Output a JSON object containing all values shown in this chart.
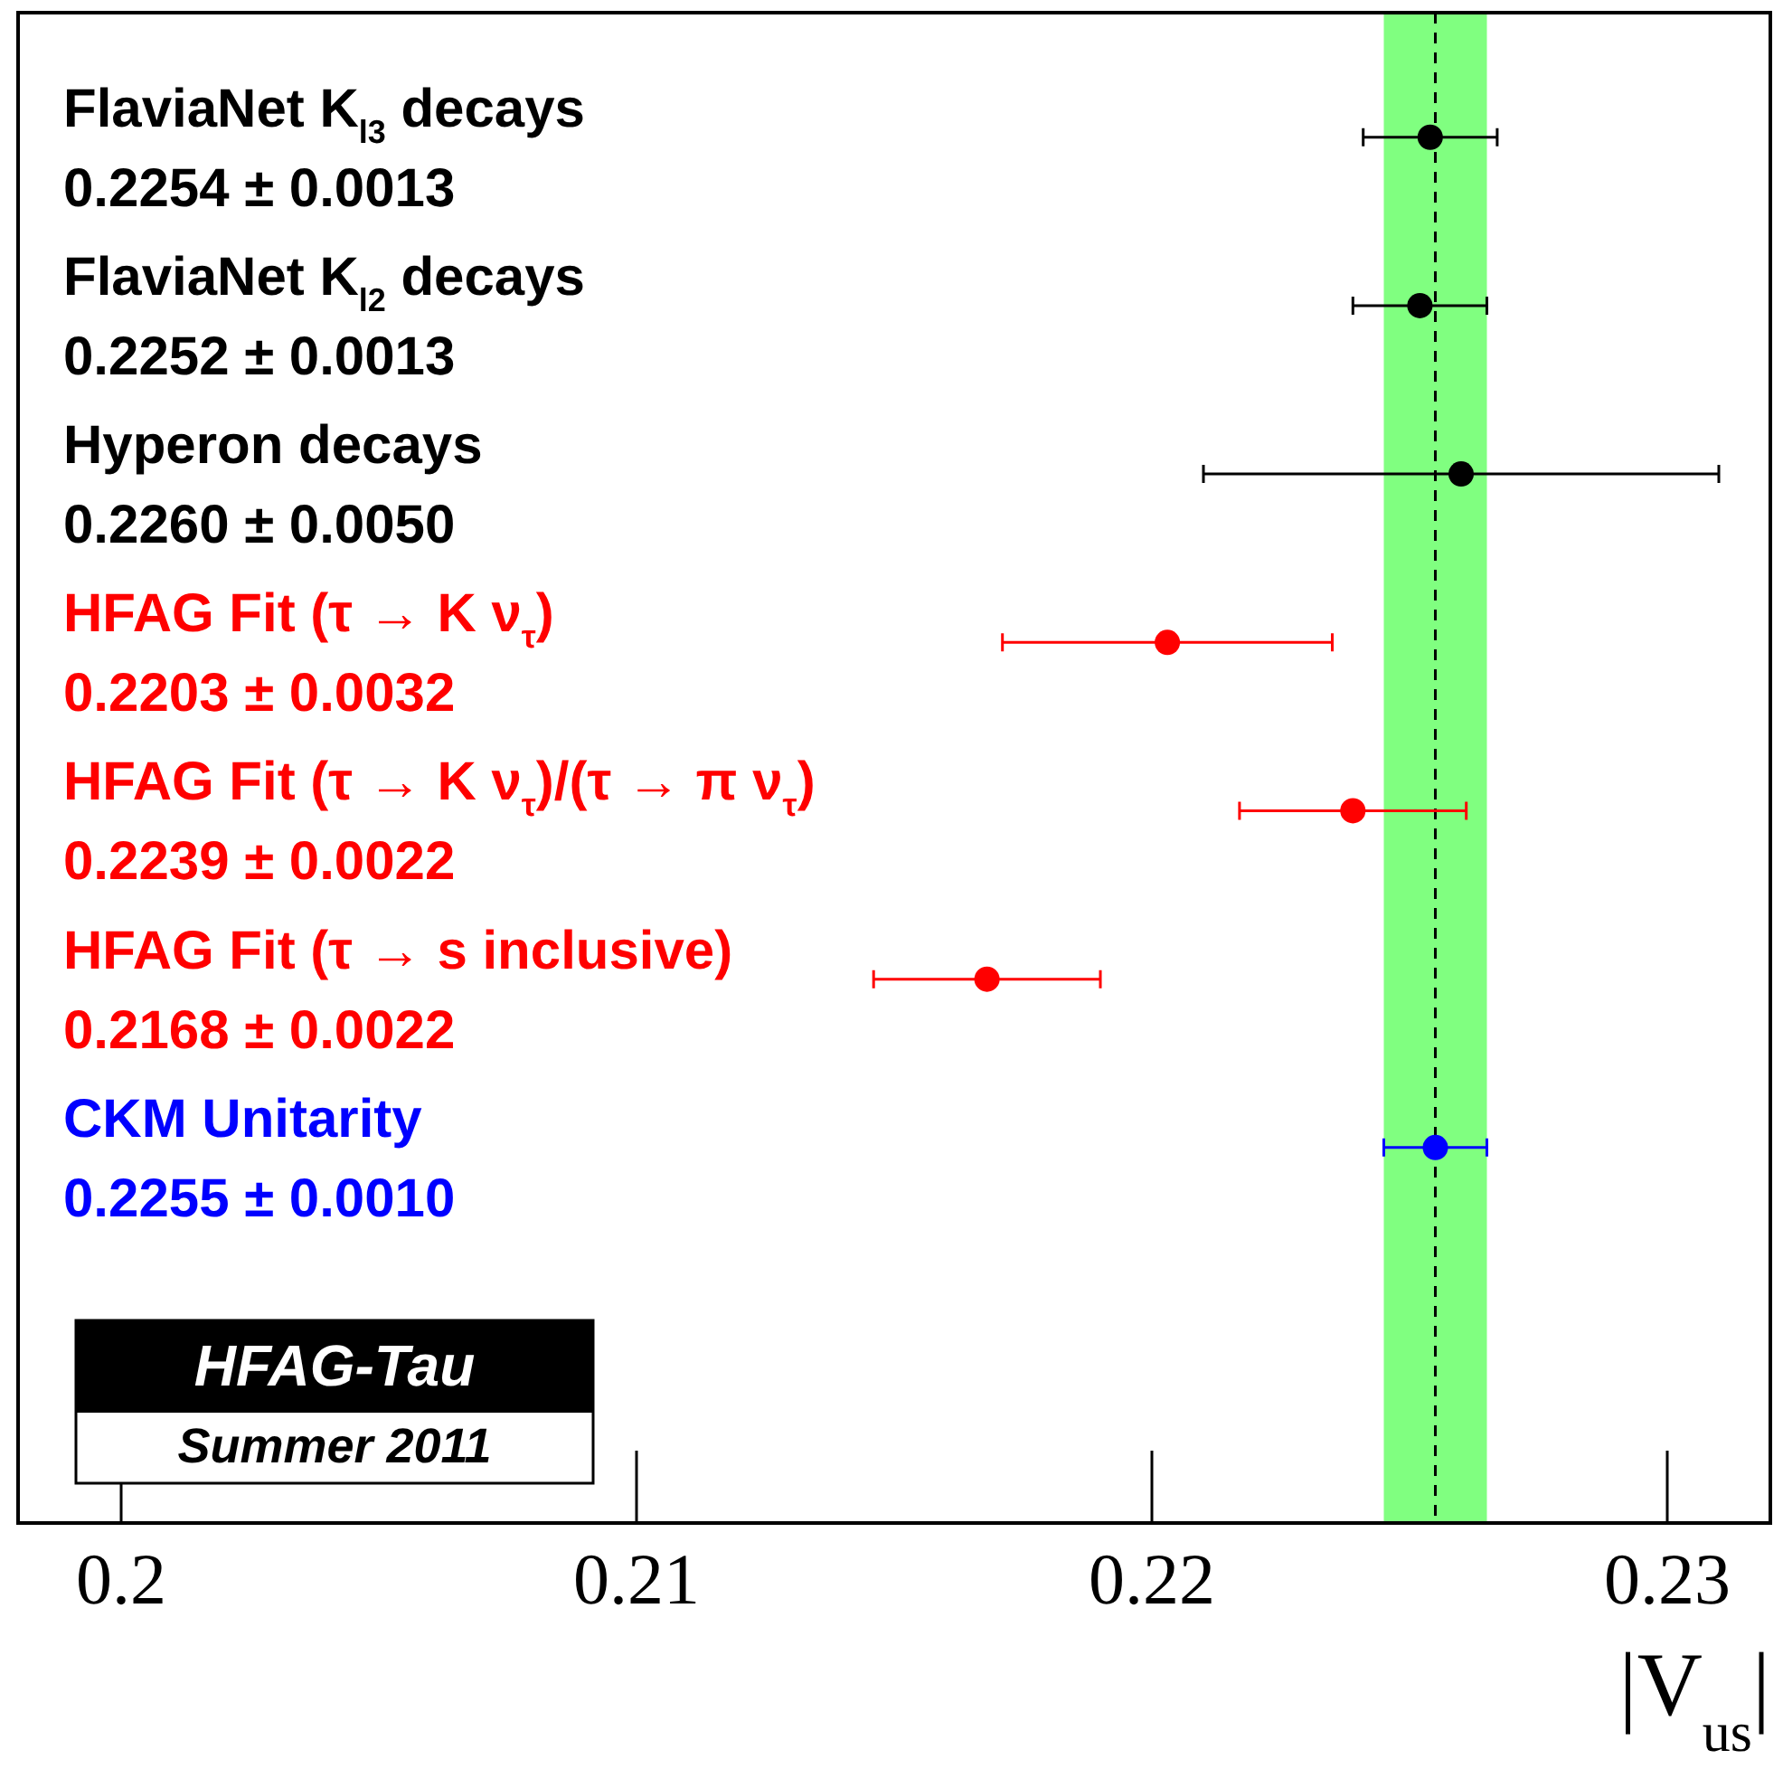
{
  "chart_data": {
    "type": "scatter",
    "orientation": "horizontal",
    "xlabel": "|V$_{us}$|",
    "categories": [
      "FlaviaNet K$_{l3}$ decays\n0.2254 ± 0.0013",
      "FlaviaNet K$_{l2}$ decays\n0.2252 ± 0.0013",
      "Hyperon decays\n0.2260 ± 0.0050",
      "HFAG Fit (τ → K ν$_{τ}$)\n0.2203 ± 0.0032",
      "HFAG Fit (τ → K ν$_{τ}$)/(τ → π ν$_{τ}$)\n0.2239 ± 0.0022",
      "HFAG Fit (τ → s inclusive)\n0.2168 ± 0.0022",
      "CKM Unitarity\n0.2255 ± 0.0010"
    ],
    "series": [
      {
        "color": "#000000",
        "values": [
          0.2254,
          0.2252,
          0.226,
          null,
          null,
          null,
          null
        ],
        "errors": [
          0.0013,
          0.0013,
          0.005,
          null,
          null,
          null,
          null
        ]
      },
      {
        "color": "#ff0000",
        "values": [
          null,
          null,
          null,
          0.2203,
          0.2239,
          0.2168,
          null
        ],
        "errors": [
          null,
          null,
          null,
          0.0032,
          0.0022,
          0.0022,
          null
        ]
      },
      {
        "color": "#0000ff",
        "values": [
          null,
          null,
          null,
          null,
          null,
          null,
          0.2255
        ],
        "errors": [
          null,
          null,
          null,
          null,
          null,
          null,
          0.001
        ]
      }
    ],
    "xlim": [
      0.198,
      0.232
    ],
    "xticks": [
      0.2,
      0.21,
      0.22,
      0.23
    ],
    "bands": [
      {
        "axis": "x",
        "from": 0.2245,
        "to": 0.2265,
        "color": "#80ff80"
      }
    ],
    "ref_lines": [
      {
        "axis": "x",
        "value": 0.2255,
        "line_style": "dashed",
        "color": "#000000"
      }
    ],
    "annotations": [
      "HFAG-Tau",
      "Summer 2011"
    ],
    "marker": "circle",
    "grid": false,
    "legend": false
  }
}
